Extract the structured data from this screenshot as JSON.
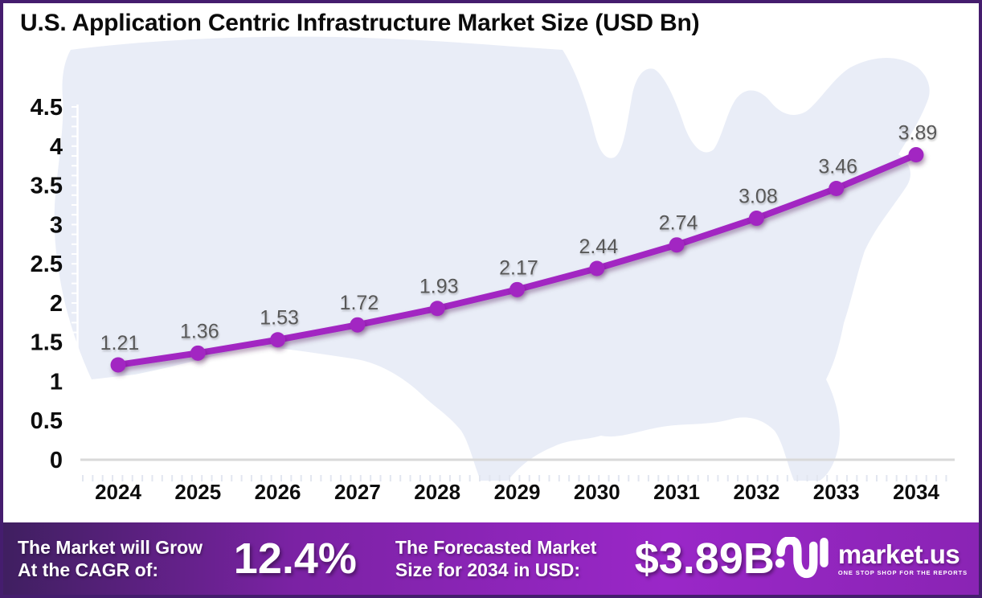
{
  "title": "U.S. Application Centric Infrastructure Market Size (USD Bn)",
  "chart_data": {
    "type": "line",
    "title": "U.S. Application Centric Infrastructure Market Size (USD Bn)",
    "categories": [
      "2024",
      "2025",
      "2026",
      "2027",
      "2028",
      "2029",
      "2030",
      "2031",
      "2032",
      "2033",
      "2034"
    ],
    "values": [
      1.21,
      1.36,
      1.53,
      1.72,
      1.93,
      2.17,
      2.44,
      2.74,
      3.08,
      3.46,
      3.89
    ],
    "data_labels": [
      "1.21",
      "1.36",
      "1.53",
      "1.72",
      "1.93",
      "2.17",
      "2.44",
      "2.74",
      "3.08",
      "3.46",
      "3.89"
    ],
    "xlabel": "",
    "ylabel": "",
    "ylim": [
      0,
      4.5
    ],
    "yticks": [
      "0",
      "0.5",
      "1",
      "1.5",
      "2",
      "2.5",
      "3",
      "3.5",
      "4",
      "4.5"
    ],
    "grid": false,
    "legend": false,
    "units": "USD Bn"
  },
  "footer": {
    "cagr_line1": "The Market will Grow",
    "cagr_line2": "At the CAGR of:",
    "cagr_value": "12.4%",
    "forecast_line1": "The Forecasted Market",
    "forecast_line2": "Size for 2034 in USD:",
    "forecast_value": "$3.89B",
    "logo_text": "market.us",
    "logo_tagline": "ONE STOP SHOP FOR THE REPORTS"
  },
  "colors": {
    "line_purple": "#a227c2",
    "point_purple": "#a227c2",
    "data_label_gray": "#595959",
    "axis_text_black": "#0d0d0d",
    "axis_line_gray": "#d9d9d9",
    "map_fill": "#e9edf7",
    "border_purple": "#451d6e",
    "footer_grad_left": "#3f1f60",
    "footer_grad_mid": "#7b22a4",
    "footer_grad_bright": "#9a27c8",
    "footer_grad_right": "#8a24b4",
    "ruler_white": "#ffffff",
    "minor_tick": "#e2e6f0"
  }
}
